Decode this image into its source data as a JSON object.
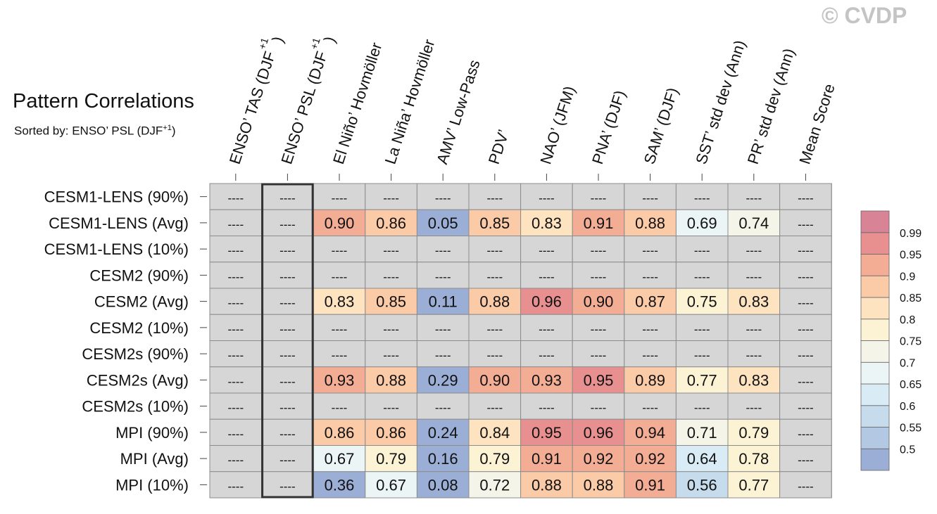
{
  "watermark": "© CVDP",
  "chart_data": {
    "type": "heatmap",
    "title": "Pattern Correlations",
    "subtitle": "Sorted by: ENSO’ PSL (DJF+1)",
    "columns": [
      "ENSO’ TAS (DJF+1)",
      "ENSO’ PSL (DJF+1)",
      "El Niño’ Hovmöller",
      "La Niña’ Hovmöller",
      "AMV’ Low-Pass",
      "PDV’",
      "NAO’ (JFM)",
      "PNA’ (DJF)",
      "SAM’ (DJF)",
      "SST’ std dev (Ann)",
      "PR’ std dev (Ann)",
      "Mean Score"
    ],
    "sorted_column_index": 1,
    "rows": [
      "CESM1-LENS (90%)",
      "CESM1-LENS (Avg)",
      "CESM1-LENS (10%)",
      "CESM2 (90%)",
      "CESM2 (Avg)",
      "CESM2 (10%)",
      "CESM2s (90%)",
      "CESM2s (Avg)",
      "CESM2s (10%)",
      "MPI (90%)",
      "MPI (Avg)",
      "MPI (10%)"
    ],
    "missing_label": "----",
    "values": [
      [
        null,
        null,
        null,
        null,
        null,
        null,
        null,
        null,
        null,
        null,
        null,
        null
      ],
      [
        null,
        null,
        0.9,
        0.86,
        0.05,
        0.85,
        0.83,
        0.91,
        0.88,
        0.69,
        0.74,
        null
      ],
      [
        null,
        null,
        null,
        null,
        null,
        null,
        null,
        null,
        null,
        null,
        null,
        null
      ],
      [
        null,
        null,
        null,
        null,
        null,
        null,
        null,
        null,
        null,
        null,
        null,
        null
      ],
      [
        null,
        null,
        0.83,
        0.85,
        0.11,
        0.88,
        0.96,
        0.9,
        0.87,
        0.75,
        0.83,
        null
      ],
      [
        null,
        null,
        null,
        null,
        null,
        null,
        null,
        null,
        null,
        null,
        null,
        null
      ],
      [
        null,
        null,
        null,
        null,
        null,
        null,
        null,
        null,
        null,
        null,
        null,
        null
      ],
      [
        null,
        null,
        0.93,
        0.88,
        0.29,
        0.9,
        0.93,
        0.95,
        0.89,
        0.77,
        0.83,
        null
      ],
      [
        null,
        null,
        null,
        null,
        null,
        null,
        null,
        null,
        null,
        null,
        null,
        null
      ],
      [
        null,
        null,
        0.86,
        0.86,
        0.24,
        0.84,
        0.95,
        0.96,
        0.94,
        0.71,
        0.79,
        null
      ],
      [
        null,
        null,
        0.67,
        0.79,
        0.16,
        0.79,
        0.91,
        0.92,
        0.92,
        0.64,
        0.78,
        null
      ],
      [
        null,
        null,
        0.36,
        0.67,
        0.08,
        0.72,
        0.88,
        0.88,
        0.91,
        0.56,
        0.77,
        null
      ]
    ],
    "colorbar": {
      "levels": [
        0.5,
        0.55,
        0.6,
        0.65,
        0.7,
        0.75,
        0.8,
        0.85,
        0.9,
        0.95,
        0.99
      ],
      "labels": [
        "0.5",
        "0.55",
        "0.6",
        "0.65",
        "0.7",
        "0.75",
        "0.8",
        "0.85",
        "0.9",
        "0.95",
        "0.99"
      ],
      "colors": [
        "#9aaed6",
        "#b3c8e2",
        "#c6dcec",
        "#d9ebf4",
        "#ebf5f6",
        "#f4f4e8",
        "#fcf3d5",
        "#fde3bf",
        "#fbcaa7",
        "#f4ad95",
        "#e89090",
        "#d98396"
      ],
      "missing_color": "#d6d6d6"
    }
  }
}
